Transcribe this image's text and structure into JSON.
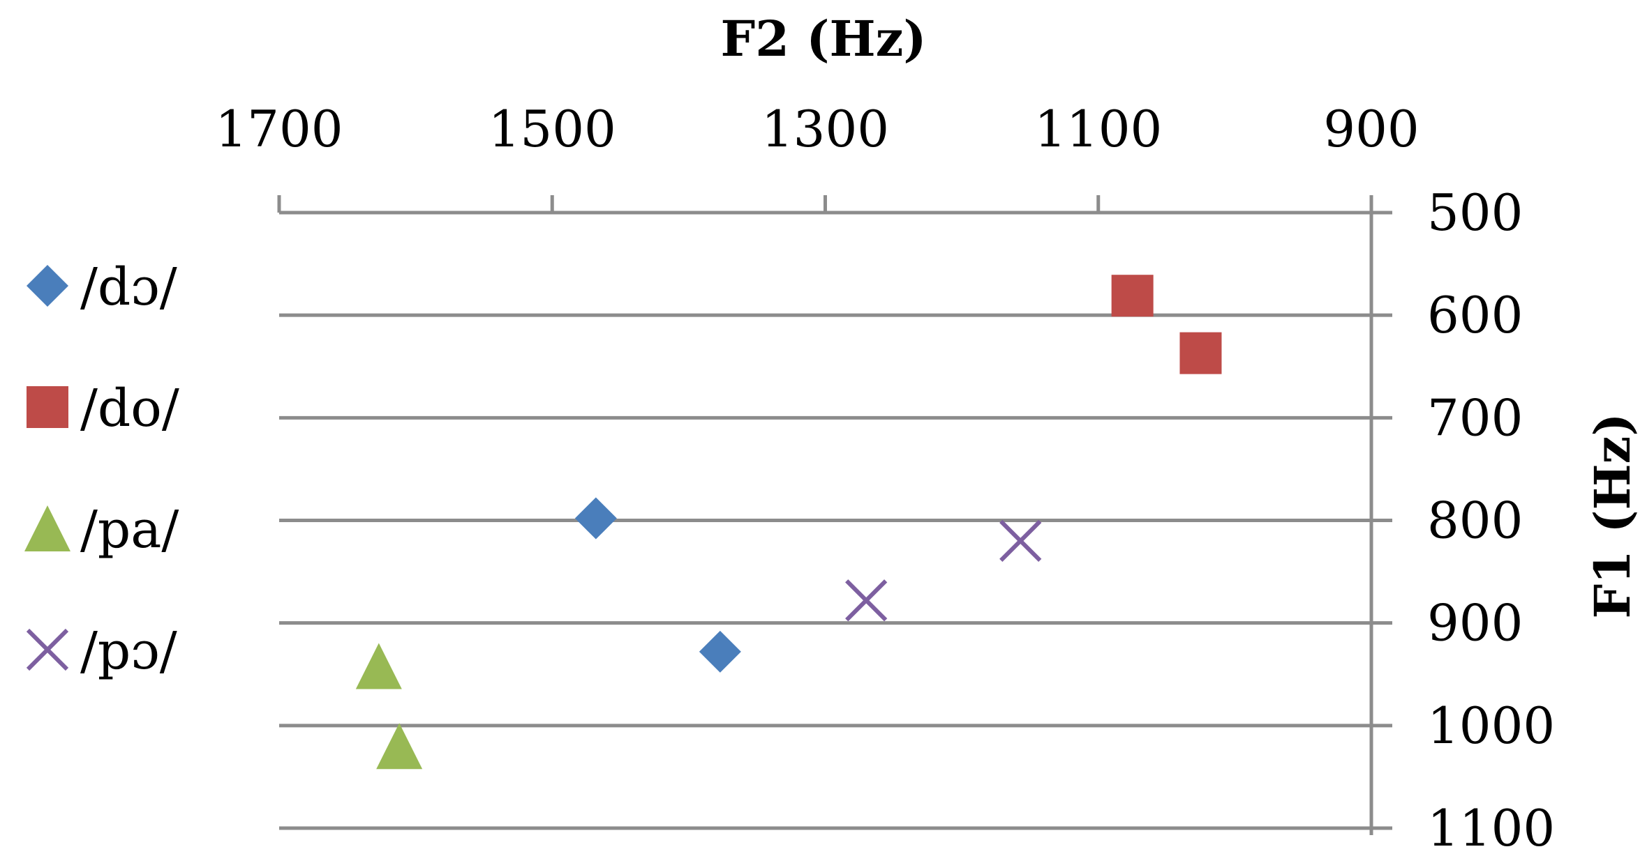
{
  "chart_data": {
    "type": "scatter",
    "title": "",
    "xlabel": "F2 (Hz)",
    "ylabel": "F1 (Hz)",
    "x_axis_position": "top",
    "y_axis_position": "right",
    "x_reversed": true,
    "y_reversed": true,
    "xlim": [
      900,
      1700
    ],
    "ylim": [
      500,
      1100
    ],
    "x_ticks": [
      1700,
      1500,
      1300,
      1100,
      900
    ],
    "y_ticks": [
      500,
      600,
      700,
      800,
      900,
      1000,
      1100
    ],
    "grid": "horizontal",
    "legend_position": "left",
    "series": [
      {
        "name": "/dɔ/",
        "marker": "diamond",
        "color": "#4a7ebb",
        "points": [
          {
            "x": 1468,
            "y": 798
          },
          {
            "x": 1377,
            "y": 928
          }
        ]
      },
      {
        "name": "/do/",
        "marker": "square",
        "color": "#be4b48",
        "points": [
          {
            "x": 1075,
            "y": 581
          },
          {
            "x": 1025,
            "y": 637
          }
        ]
      },
      {
        "name": "/pa/",
        "marker": "triangle",
        "color": "#98b954",
        "points": [
          {
            "x": 1627,
            "y": 942
          },
          {
            "x": 1612,
            "y": 1020
          }
        ]
      },
      {
        "name": "/pɔ/",
        "marker": "x",
        "color": "#7d5fa0",
        "points": [
          {
            "x": 1270,
            "y": 878
          },
          {
            "x": 1157,
            "y": 820
          }
        ]
      }
    ]
  }
}
